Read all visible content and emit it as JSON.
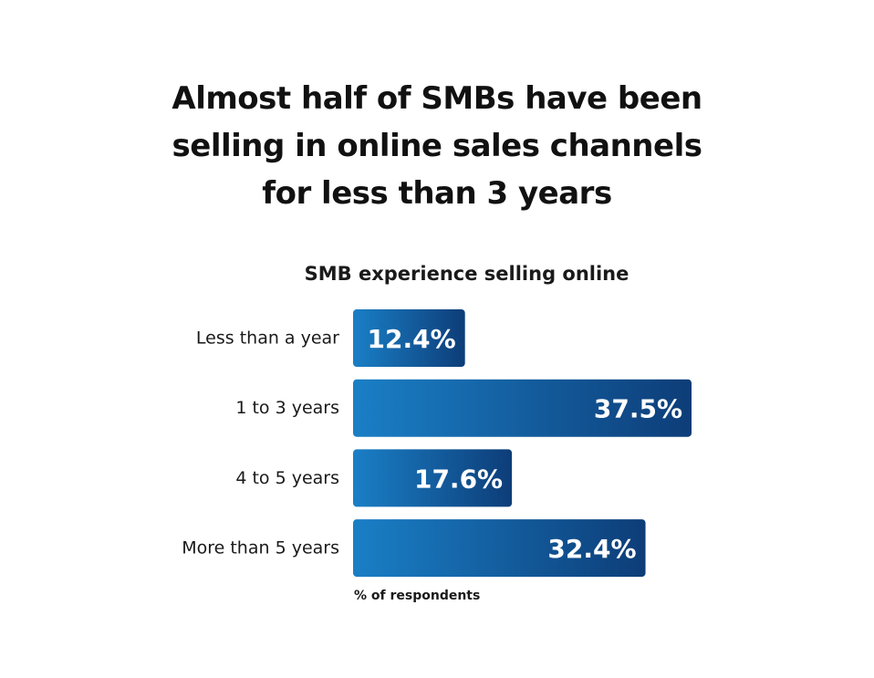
{
  "chart_data": {
    "type": "bar",
    "orientation": "horizontal",
    "title_lines": [
      "Almost half of SMBs have been",
      "selling in online sales channels",
      "for less than 3 years"
    ],
    "subtitle": "SMB experience selling online",
    "xlabel": "% of respondents",
    "categories": [
      "Less than a year",
      "1 to 3 years",
      "4 to 5 years",
      "More than 5 years"
    ],
    "values": [
      12.4,
      37.5,
      17.6,
      32.4
    ],
    "value_labels": [
      "12.4%",
      "37.5%",
      "17.6%",
      "32.4%"
    ],
    "xlim": [
      0,
      37.5
    ],
    "grid": false,
    "legend": "none",
    "colors": {
      "bar_start": "#1a7fc6",
      "bar_end": "#0d3d78",
      "text": "#1a1a1a",
      "value_text": "#ffffff"
    }
  }
}
